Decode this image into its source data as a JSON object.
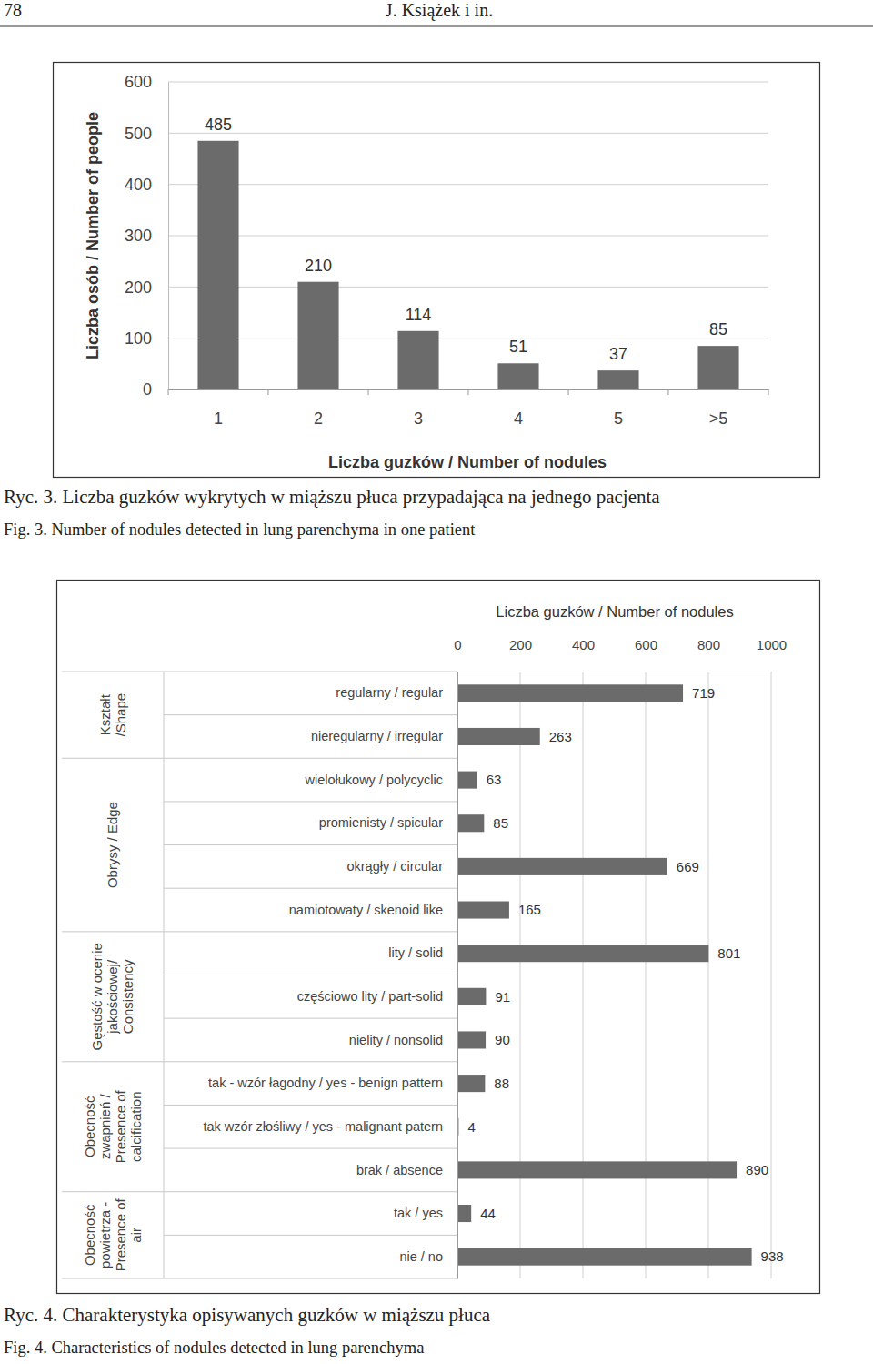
{
  "page_header": {
    "page_number": "78",
    "running_title": "J. Książek i in."
  },
  "figures": [
    {
      "caption_pl": "Ryc. 3. Liczba guzków wykrytych w miąższu płuca przypadająca na jednego pacjenta",
      "caption_en": "Fig. 3. Number of nodules detected in lung parenchyma in one patient"
    },
    {
      "caption_pl": "Ryc. 4. Charakterystyka opisywanych guzków w miąższu płuca",
      "caption_en": "Fig. 4. Characteristics of nodules detected in lung parenchyma"
    }
  ],
  "chart_data": [
    {
      "type": "bar",
      "xlabel": "Liczba guzków / Number of nodules",
      "ylabel": "Liczba osób / Number of people",
      "categories": [
        "1",
        "2",
        "3",
        "4",
        "5",
        ">5"
      ],
      "values": [
        485,
        210,
        114,
        51,
        37,
        85
      ],
      "color": "#6b6b6b",
      "ylim": [
        0,
        600
      ],
      "yticks": [
        0,
        100,
        200,
        300,
        400,
        500,
        600
      ],
      "grid": true,
      "data_labels": true
    },
    {
      "type": "bar",
      "orientation": "horizontal",
      "xlabel": "Liczba guzków / Number of nodules",
      "categories": [
        "regularny / regular",
        "nieregularny / irregular",
        "wielołukowy / polycyclic",
        "promienisty / spicular",
        "okrągły / circular",
        "namiotowaty / skenoid like",
        "lity / solid",
        "częściowo lity / part-solid",
        "nielity / nonsolid",
        "tak - wzór łagodny / yes - benign pattern",
        "tak wzór złośliwy / yes - malignant patern",
        "brak / absence",
        "tak / yes",
        "nie / no"
      ],
      "values": [
        719,
        263,
        63,
        85,
        669,
        165,
        801,
        91,
        90,
        88,
        4,
        890,
        44,
        938
      ],
      "groups": [
        {
          "label": [
            "Kształt",
            "/Shape"
          ],
          "categories": [
            "regularny / regular",
            "nieregularny / irregular"
          ]
        },
        {
          "label": [
            "Obrysy / Edge"
          ],
          "categories": [
            "wielołukowy / polycyclic",
            "promienisty / spicular",
            "okrągły / circular",
            "namiotowaty / skenoid like"
          ]
        },
        {
          "label": [
            "Gęstość w ocenie",
            "jakościowej/",
            "Consistency"
          ],
          "categories": [
            "lity / solid",
            "częściowo lity / part-solid",
            "nielity / nonsolid"
          ]
        },
        {
          "label": [
            "Obecność",
            "zwapnień /",
            "Presence of",
            "calcification"
          ],
          "categories": [
            "tak - wzór łagodny / yes - benign pattern",
            "tak wzór złośliwy / yes - malignant patern",
            "brak / absence"
          ]
        },
        {
          "label": [
            "Obecność",
            "powietrza -",
            "Presence of",
            "air"
          ],
          "categories": [
            "tak / yes",
            "nie / no"
          ]
        }
      ],
      "color": "#6b6b6b",
      "xlim": [
        0,
        1000
      ],
      "xticks": [
        0,
        200,
        400,
        600,
        800,
        1000
      ],
      "grid": true,
      "data_labels": true
    }
  ]
}
